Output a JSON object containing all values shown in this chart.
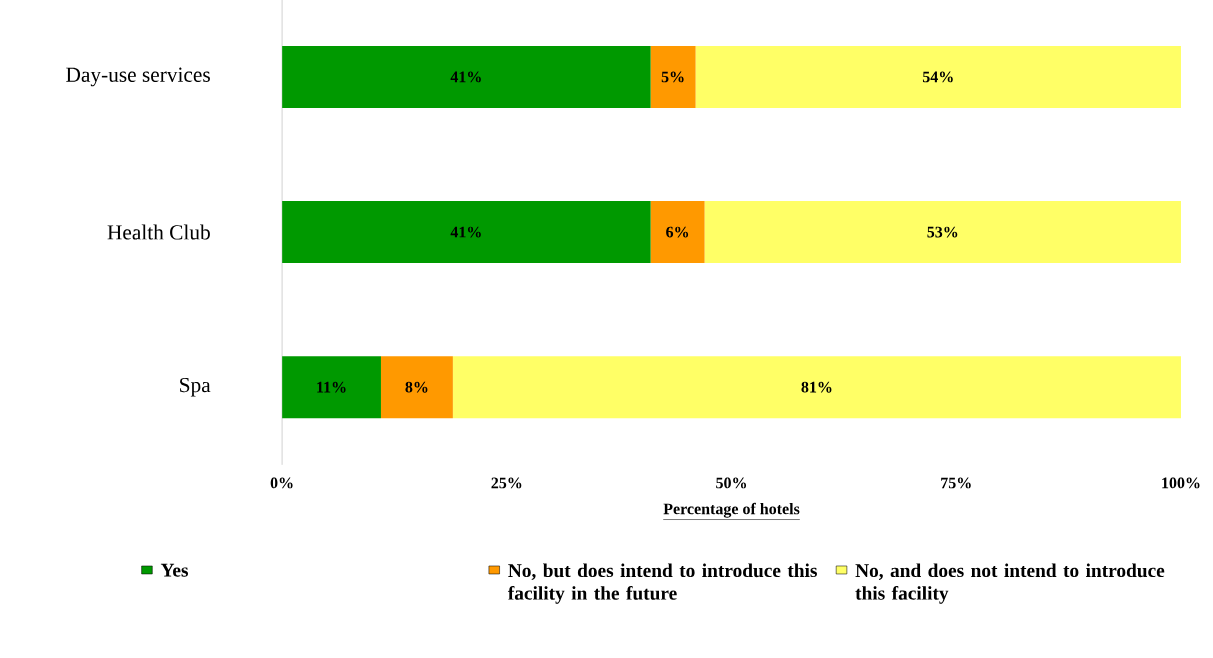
{
  "chart_data": {
    "type": "bar",
    "orientation": "horizontal",
    "stacked": true,
    "categories": [
      "Day-use services",
      "Health Club",
      "Spa"
    ],
    "xlabel": "Percentage of hotels",
    "xlim": [
      0,
      100
    ],
    "xticks": [
      {
        "value": 0,
        "label": "0%"
      },
      {
        "value": 25,
        "label": "25%"
      },
      {
        "value": 50,
        "label": "50%"
      },
      {
        "value": 75,
        "label": "75%"
      },
      {
        "value": 100,
        "label": "100%"
      }
    ],
    "series": [
      {
        "name": "Yes",
        "color": "#009900",
        "values": [
          41,
          41,
          11
        ],
        "value_labels": [
          "41%",
          "41%",
          "11%"
        ]
      },
      {
        "name": "No, but does intend to introduce this facility in the future",
        "color": "#ff9900",
        "values": [
          5,
          6,
          8
        ],
        "value_labels": [
          "5%",
          "6%",
          "8%"
        ]
      },
      {
        "name": "No, and does not intend to introduce this facility",
        "color": "#ffff66",
        "values": [
          54,
          53,
          81
        ],
        "value_labels": [
          "54%",
          "53%",
          "81%"
        ]
      }
    ],
    "legend": "bottom",
    "grid": false
  }
}
